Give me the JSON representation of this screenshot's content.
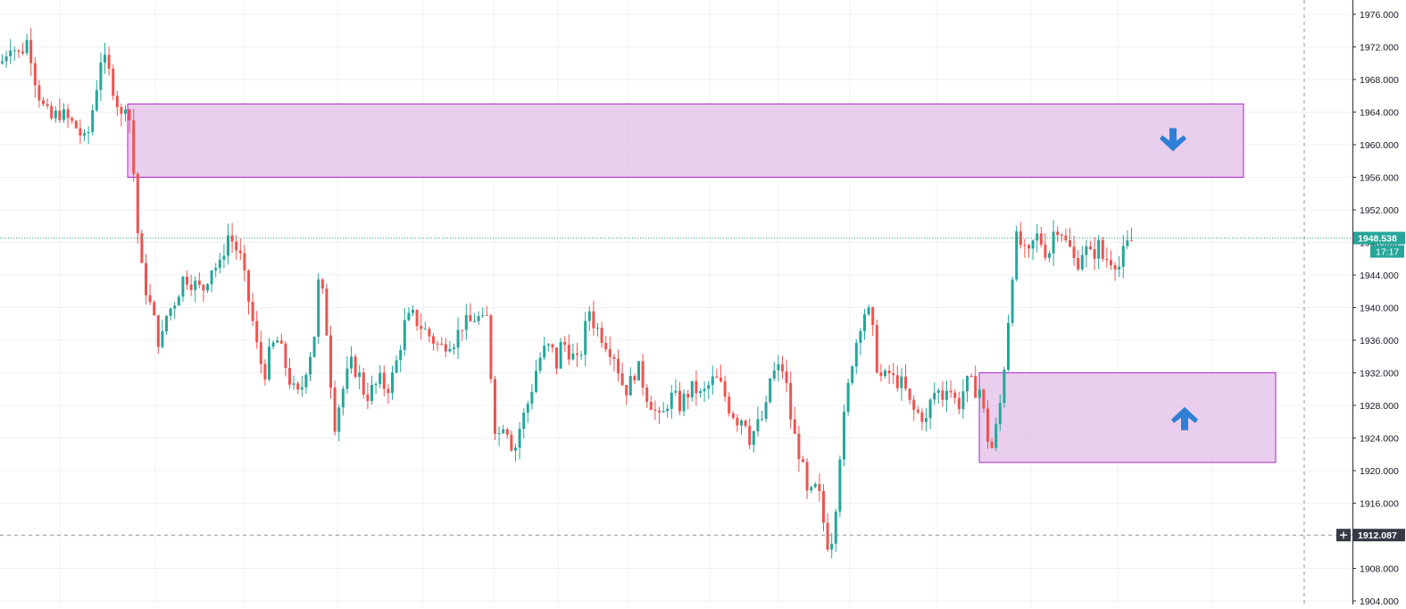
{
  "chart_data": {
    "type": "candlestick",
    "title": "",
    "ylim": [
      1904,
      1977
    ],
    "y_ticks": [
      "1976.000",
      "1972.000",
      "1968.000",
      "1964.000",
      "1960.000",
      "1956.000",
      "1952.000",
      "1948.000",
      "1944.000",
      "1940.000",
      "1936.000",
      "1932.000",
      "1928.000",
      "1924.000",
      "1920.000",
      "1916.000",
      "1912.000",
      "1908.000",
      "1904.000"
    ],
    "grid": true,
    "colors": {
      "up": "#26a69a",
      "down": "#ef5350",
      "zone_fill": "#e1bee7",
      "zone_border": "#ab27c7",
      "arrow": "#2f7fd6",
      "price_tag": "#26a69a",
      "crosshair_tag": "#363a45"
    },
    "current_price": {
      "value": 1948.538,
      "label": "1948.538",
      "countdown": "17:17"
    },
    "crosshair_price": {
      "value": 1912.087,
      "label": "1912.087"
    },
    "zones": [
      {
        "name": "supply-zone",
        "from_price": 1956.0,
        "to_price": 1965.0,
        "direction": "down",
        "arrow_icon": "arrow-down-icon"
      },
      {
        "name": "demand-zone",
        "from_price": 1921.0,
        "to_price": 1932.0,
        "direction": "up",
        "arrow_icon": "arrow-up-icon"
      }
    ],
    "price_path": [
      [
        0,
        1970
      ],
      [
        10,
        1972.5
      ],
      [
        20,
        1971
      ],
      [
        30,
        1973
      ],
      [
        38,
        1968
      ],
      [
        45,
        1965
      ],
      [
        55,
        1963
      ],
      [
        65,
        1964
      ],
      [
        75,
        1963
      ],
      [
        85,
        1962
      ],
      [
        95,
        1960
      ],
      [
        105,
        1966
      ],
      [
        112,
        1971
      ],
      [
        120,
        1969
      ],
      [
        128,
        1966
      ],
      [
        135,
        1963
      ],
      [
        140,
        1966
      ],
      [
        145,
        1962
      ],
      [
        152,
        1950
      ],
      [
        158,
        1944
      ],
      [
        165,
        1941
      ],
      [
        172,
        1938
      ],
      [
        178,
        1935
      ],
      [
        185,
        1939
      ],
      [
        195,
        1941
      ],
      [
        205,
        1944
      ],
      [
        215,
        1943
      ],
      [
        225,
        1942
      ],
      [
        235,
        1945
      ],
      [
        245,
        1945
      ],
      [
        253,
        1949
      ],
      [
        260,
        1948
      ],
      [
        268,
        1946
      ],
      [
        275,
        1942
      ],
      [
        282,
        1938
      ],
      [
        288,
        1934
      ],
      [
        295,
        1932
      ],
      [
        302,
        1935
      ],
      [
        310,
        1936
      ],
      [
        318,
        1933
      ],
      [
        326,
        1930
      ],
      [
        334,
        1929
      ],
      [
        342,
        1933
      ],
      [
        350,
        1936
      ],
      [
        356,
        1944
      ],
      [
        362,
        1940
      ],
      [
        368,
        1933
      ],
      [
        372,
        1925
      ],
      [
        378,
        1928
      ],
      [
        385,
        1931
      ],
      [
        392,
        1933
      ],
      [
        400,
        1932
      ],
      [
        408,
        1929
      ],
      [
        416,
        1930
      ],
      [
        424,
        1931
      ],
      [
        432,
        1930
      ],
      [
        440,
        1932
      ],
      [
        446,
        1935
      ],
      [
        452,
        1938
      ],
      [
        460,
        1939
      ],
      [
        468,
        1938
      ],
      [
        476,
        1937
      ],
      [
        484,
        1936
      ],
      [
        492,
        1935
      ],
      [
        500,
        1936
      ],
      [
        508,
        1936
      ],
      [
        516,
        1938
      ],
      [
        524,
        1938
      ],
      [
        532,
        1939
      ],
      [
        540,
        1938
      ],
      [
        546,
        1939
      ],
      [
        550,
        1927
      ],
      [
        556,
        1924
      ],
      [
        562,
        1926
      ],
      [
        568,
        1925
      ],
      [
        574,
        1922
      ],
      [
        580,
        1925
      ],
      [
        586,
        1927
      ],
      [
        592,
        1929
      ],
      [
        598,
        1932
      ],
      [
        604,
        1934
      ],
      [
        610,
        1935
      ],
      [
        616,
        1935
      ],
      [
        622,
        1933
      ],
      [
        628,
        1936
      ],
      [
        634,
        1935
      ],
      [
        640,
        1934
      ],
      [
        646,
        1933
      ],
      [
        652,
        1936
      ],
      [
        658,
        1940
      ],
      [
        664,
        1938
      ],
      [
        670,
        1937
      ],
      [
        676,
        1936
      ],
      [
        682,
        1935
      ],
      [
        688,
        1934
      ],
      [
        694,
        1931
      ],
      [
        700,
        1930
      ],
      [
        706,
        1931
      ],
      [
        712,
        1933
      ],
      [
        718,
        1931
      ],
      [
        724,
        1929
      ],
      [
        730,
        1928
      ],
      [
        736,
        1926
      ],
      [
        742,
        1927
      ],
      [
        748,
        1929
      ],
      [
        754,
        1929
      ],
      [
        760,
        1928
      ],
      [
        766,
        1929
      ],
      [
        772,
        1930
      ],
      [
        778,
        1930
      ],
      [
        784,
        1929
      ],
      [
        790,
        1930
      ],
      [
        796,
        1931
      ],
      [
        802,
        1931
      ],
      [
        808,
        1930
      ],
      [
        814,
        1928
      ],
      [
        820,
        1927
      ],
      [
        826,
        1926
      ],
      [
        832,
        1927
      ],
      [
        838,
        1924
      ],
      [
        844,
        1925
      ],
      [
        850,
        1926
      ],
      [
        856,
        1927
      ],
      [
        862,
        1932
      ],
      [
        868,
        1932
      ],
      [
        874,
        1933
      ],
      [
        880,
        1930
      ],
      [
        886,
        1925
      ],
      [
        892,
        1923
      ],
      [
        898,
        1920
      ],
      [
        904,
        1916
      ],
      [
        910,
        1918
      ],
      [
        916,
        1917
      ],
      [
        922,
        1913
      ],
      [
        928,
        1910
      ],
      [
        934,
        1915
      ],
      [
        940,
        1923
      ],
      [
        946,
        1928
      ],
      [
        952,
        1933
      ],
      [
        958,
        1936
      ],
      [
        964,
        1939
      ],
      [
        970,
        1940
      ],
      [
        976,
        1937
      ],
      [
        982,
        1932
      ],
      [
        988,
        1931
      ],
      [
        994,
        1932
      ],
      [
        1000,
        1931
      ],
      [
        1006,
        1931
      ],
      [
        1012,
        1930
      ],
      [
        1018,
        1928
      ],
      [
        1024,
        1927
      ],
      [
        1030,
        1927
      ],
      [
        1036,
        1926
      ],
      [
        1042,
        1929
      ],
      [
        1048,
        1930
      ],
      [
        1054,
        1929
      ],
      [
        1060,
        1931
      ],
      [
        1066,
        1929
      ],
      [
        1072,
        1928
      ],
      [
        1078,
        1930
      ],
      [
        1084,
        1931
      ],
      [
        1090,
        1930
      ],
      [
        1096,
        1930
      ],
      [
        1102,
        1926
      ],
      [
        1108,
        1922
      ],
      [
        1114,
        1925
      ],
      [
        1120,
        1929
      ],
      [
        1126,
        1936
      ],
      [
        1132,
        1944
      ],
      [
        1138,
        1949
      ],
      [
        1144,
        1947
      ],
      [
        1150,
        1946
      ],
      [
        1156,
        1948
      ],
      [
        1162,
        1949
      ],
      [
        1168,
        1947
      ],
      [
        1174,
        1947
      ],
      [
        1180,
        1950
      ],
      [
        1186,
        1950
      ],
      [
        1192,
        1948
      ],
      [
        1198,
        1947
      ],
      [
        1204,
        1945
      ],
      [
        1210,
        1947
      ],
      [
        1216,
        1947
      ],
      [
        1222,
        1946
      ],
      [
        1228,
        1948
      ],
      [
        1234,
        1946
      ],
      [
        1240,
        1946
      ],
      [
        1246,
        1946
      ],
      [
        1252,
        1945
      ],
      [
        1258,
        1947
      ],
      [
        1264,
        1948
      ],
      [
        1270,
        1948.5
      ]
    ]
  }
}
